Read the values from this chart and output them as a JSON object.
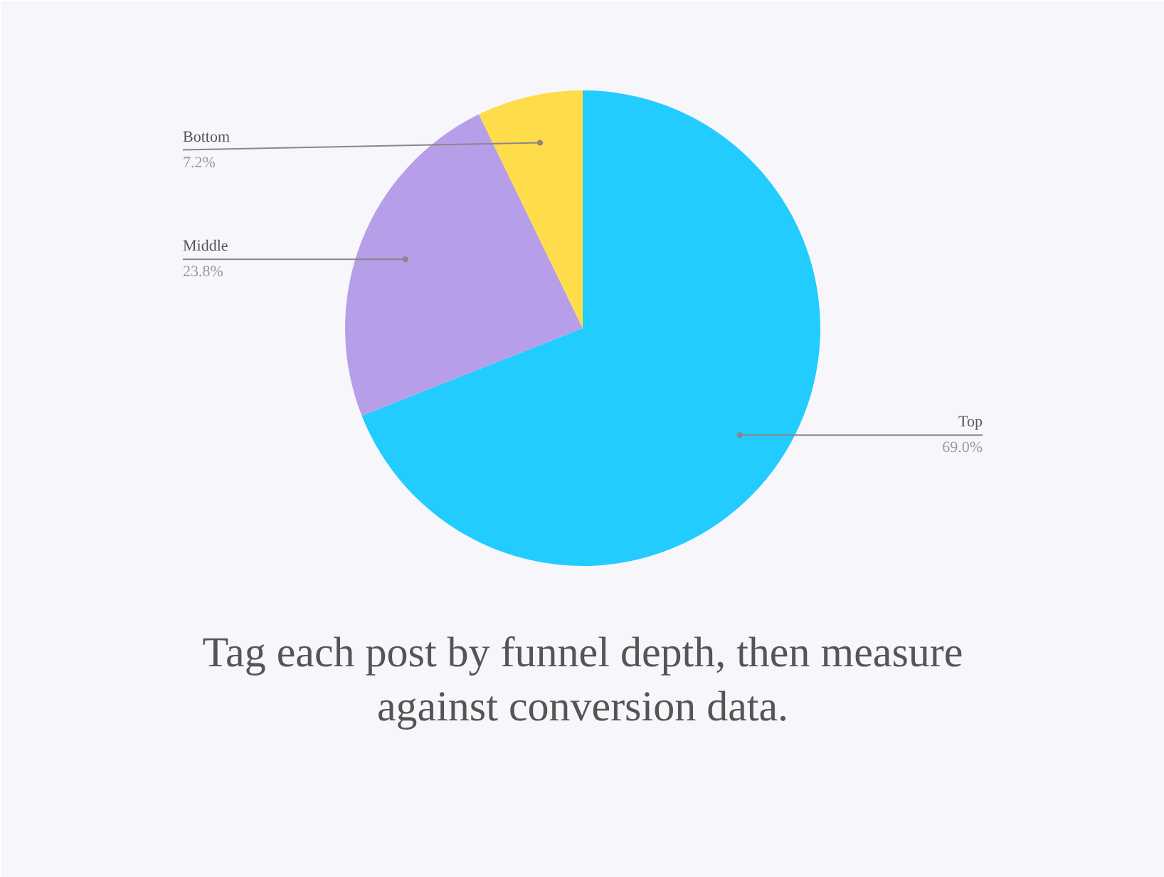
{
  "chart_data": {
    "type": "pie",
    "title": "Tag each post by funnel depth, then measure against conversion data.",
    "categories": [
      "Top",
      "Middle",
      "Bottom"
    ],
    "values": [
      69.0,
      23.8,
      7.2
    ],
    "value_labels": [
      "69.0%",
      "23.8%",
      "7.2%"
    ],
    "colors": [
      "#22ccff",
      "#b79ee8",
      "#ffdd4a"
    ]
  }
}
